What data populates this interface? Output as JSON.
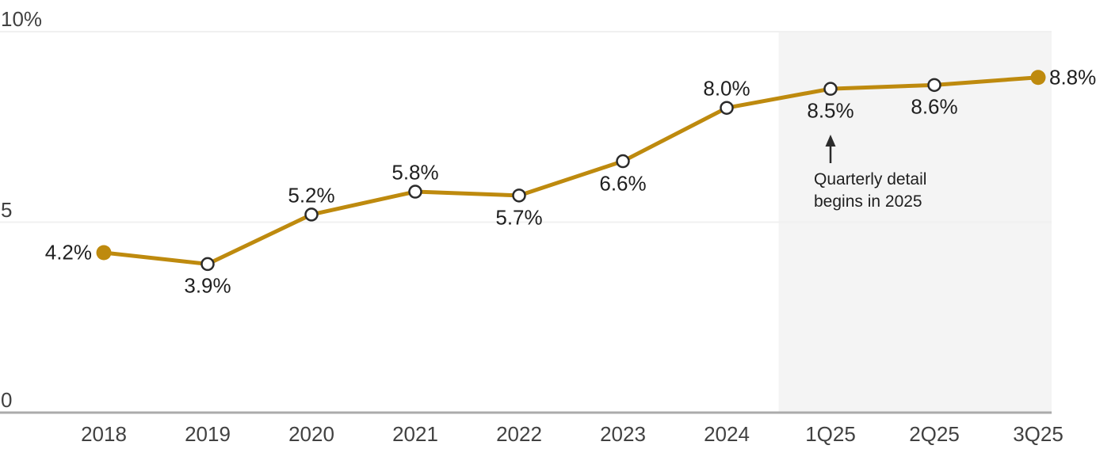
{
  "chart_data": {
    "type": "line",
    "title": "",
    "categories": [
      "2018",
      "2019",
      "2020",
      "2021",
      "2022",
      "2023",
      "2024",
      "1Q25",
      "2Q25",
      "3Q25"
    ],
    "values": [
      4.2,
      3.9,
      5.2,
      5.8,
      5.7,
      6.6,
      8.0,
      8.5,
      8.6,
      8.8
    ],
    "point_labels": [
      "4.2%",
      "3.9%",
      "5.2%",
      "5.8%",
      "5.7%",
      "6.6%",
      "8.0%",
      "8.5%",
      "8.6%",
      "8.8%"
    ],
    "label_placement": [
      "left",
      "below",
      "above",
      "above",
      "below",
      "below",
      "above",
      "below",
      "below",
      "right"
    ],
    "marker_style": [
      "filled",
      "open",
      "open",
      "open",
      "open",
      "open",
      "open",
      "open",
      "open",
      "filled"
    ],
    "ylim": [
      0,
      10
    ],
    "yticks": [
      {
        "value": 0,
        "label": "0"
      },
      {
        "value": 5,
        "label": "5"
      },
      {
        "value": 10,
        "label": "10%"
      }
    ],
    "grid": "horizontal",
    "legend": "none",
    "shaded_region": {
      "start_category": "1Q25",
      "end": "right-edge"
    },
    "annotation": {
      "line1": "Quarterly detail",
      "line2": "begins in 2025",
      "arrow": "up",
      "points_to_category": "1Q25"
    },
    "colors": {
      "line": "#BE8A0E",
      "marker_open_fill": "#FFFFFF",
      "marker_open_stroke": "#2B2B2B",
      "shaded_region": "#F4F4F4",
      "gridline": "#F0F0F0",
      "axis_line": "#ABABAB",
      "data_label_text": "#1F1F1F",
      "tick_label_text": "#414141",
      "annotation_text": "#1F1F1F",
      "background": "#FFFFFF"
    }
  }
}
